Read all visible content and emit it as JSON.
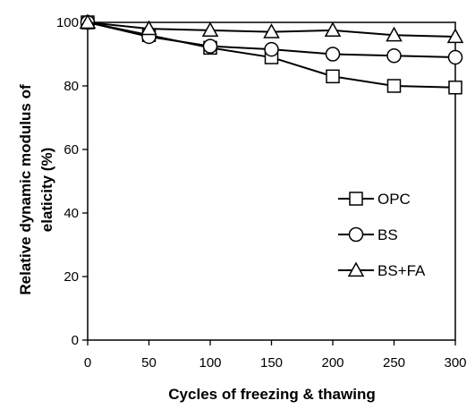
{
  "chart_data": {
    "type": "line",
    "title": "",
    "xlabel": "Cycles of freezing & thawing",
    "ylabel_lines": [
      "Relative dynamic modulus of",
      "elaticity (%)"
    ],
    "x": [
      0,
      50,
      100,
      150,
      200,
      250,
      300
    ],
    "xlim": [
      0,
      300
    ],
    "ylim": [
      0,
      100
    ],
    "xticks": [
      "0",
      "50",
      "100",
      "150",
      "200",
      "250",
      "300"
    ],
    "yticks": [
      "0",
      "20",
      "40",
      "60",
      "80",
      "100"
    ],
    "grid": false,
    "legend_position": "right-middle",
    "series": [
      {
        "name": "OPC",
        "marker": "square",
        "values": [
          100,
          96,
          92,
          89,
          83,
          80,
          79.5
        ]
      },
      {
        "name": "BS",
        "marker": "circle",
        "values": [
          100,
          95.5,
          92.5,
          91.5,
          90,
          89.5,
          89
        ]
      },
      {
        "name": "BS+FA",
        "marker": "triangle",
        "values": [
          100,
          98,
          97.5,
          97,
          97.5,
          96,
          95.5
        ]
      }
    ]
  }
}
